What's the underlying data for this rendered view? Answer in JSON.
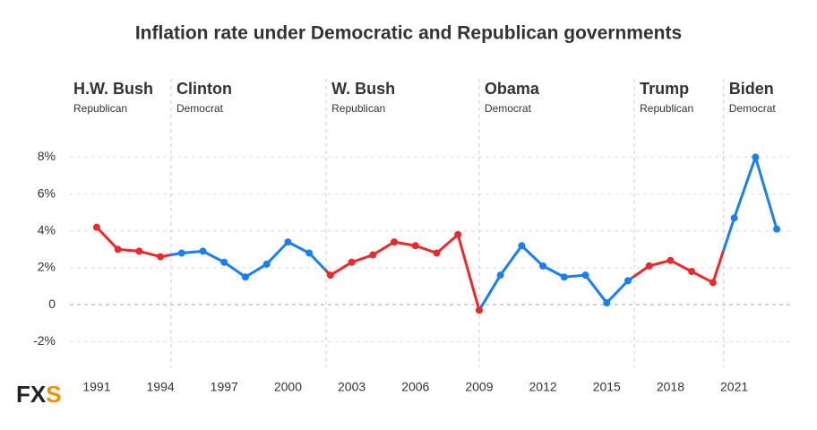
{
  "chart_data": {
    "type": "line",
    "title": "Inflation rate under Democratic and Republican governments",
    "x": [
      1991,
      1992,
      1993,
      1994,
      1995,
      1996,
      1997,
      1998,
      1999,
      2000,
      2001,
      2002,
      2003,
      2004,
      2005,
      2006,
      2007,
      2008,
      2009,
      2010,
      2011,
      2012,
      2013,
      2014,
      2015,
      2016,
      2017,
      2018,
      2019,
      2020,
      2021,
      2022,
      2023
    ],
    "values": [
      4.2,
      3.0,
      2.9,
      2.6,
      2.8,
      2.9,
      2.3,
      1.5,
      2.2,
      3.4,
      2.8,
      1.6,
      2.3,
      2.7,
      3.4,
      3.2,
      2.8,
      3.8,
      -0.3,
      1.6,
      3.2,
      2.1,
      1.5,
      1.6,
      0.1,
      1.3,
      2.1,
      2.4,
      1.8,
      1.2,
      4.7,
      8.0,
      4.1
    ],
    "eras": [
      {
        "name": "H.W. Bush",
        "party": "Republican"
      },
      {
        "name": "Clinton",
        "party": "Democrat"
      },
      {
        "name": "W. Bush",
        "party": "Republican"
      },
      {
        "name": "Obama",
        "party": "Democrat"
      },
      {
        "name": "Trump",
        "party": "Republican"
      },
      {
        "name": "Biden",
        "party": "Democrat"
      }
    ],
    "era_boundaries": [
      1994.5,
      2001.8,
      2009.0,
      2016.3,
      2020.5
    ],
    "party_colors": {
      "Republican": "#ea2a2a",
      "Democrat": "#1a7ff0"
    },
    "xlim": [
      1990.16,
      2023.63
    ],
    "xticks": [
      1991,
      1994,
      1997,
      2000,
      2003,
      2006,
      2009,
      2012,
      2015,
      2018,
      2021
    ],
    "ylim": [
      -3.2,
      8.7
    ],
    "yticks": [
      {
        "value": -2,
        "label": "-2%"
      },
      0,
      {
        "value": 2,
        "label": "2%"
      },
      {
        "value": 4,
        "label": "4%"
      },
      {
        "value": 6,
        "label": "6%"
      },
      {
        "value": 8,
        "label": "8%"
      }
    ],
    "grid": true,
    "logo": {
      "main": "FX",
      "accent": "S"
    }
  }
}
